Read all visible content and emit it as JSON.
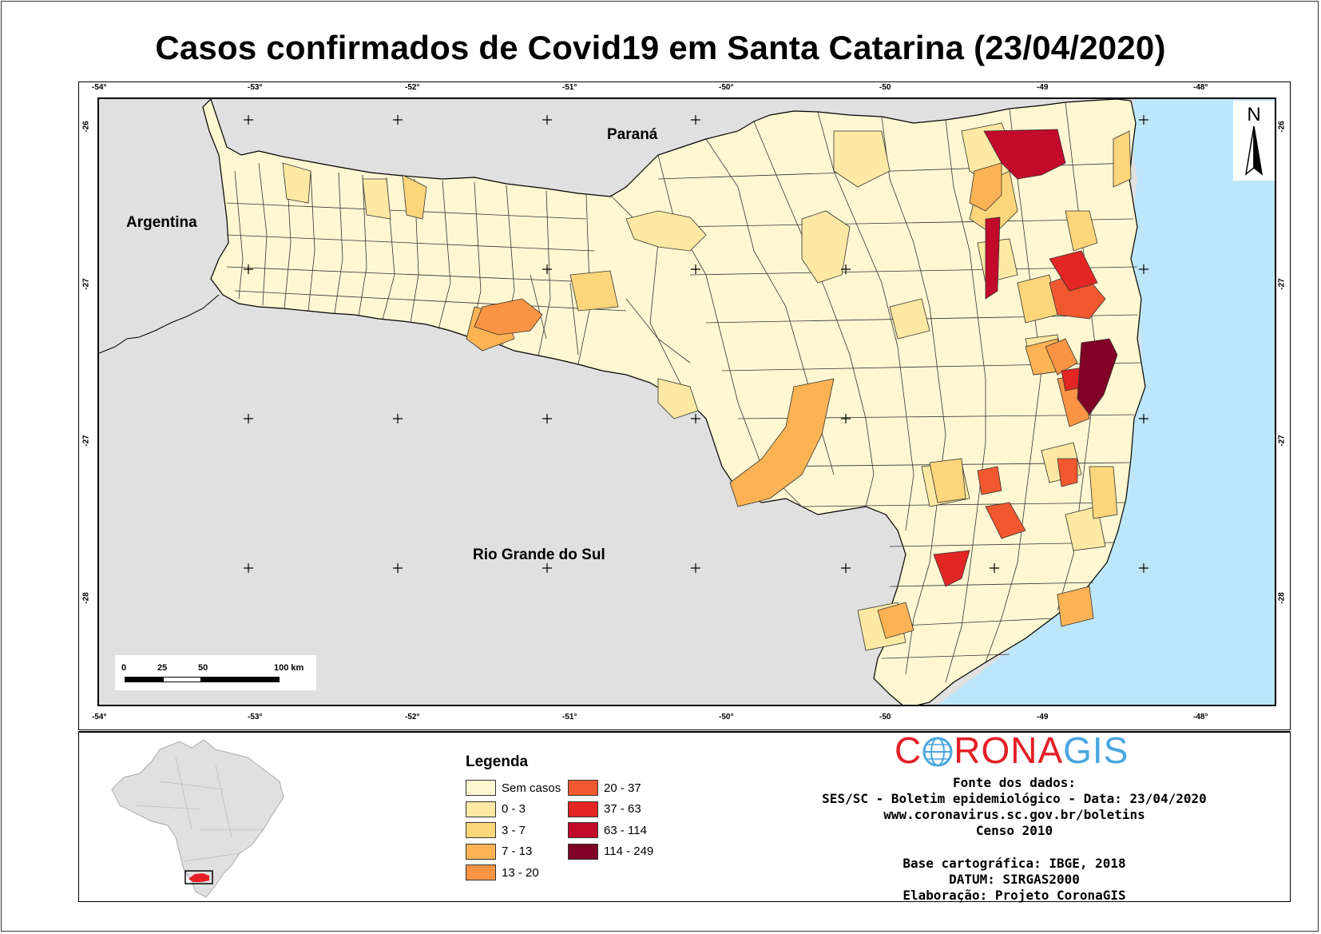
{
  "title": "Casos confirmados de Covid19 em Santa Catarina (23/04/2020)",
  "map": {
    "longitude_ticks": [
      "-54°",
      "-53°",
      "-52°",
      "-51°",
      "-50°",
      "-50",
      "-49",
      "-48°"
    ],
    "latitude_ticks": [
      "-26",
      "-27",
      "-27",
      "-28"
    ],
    "labels": {
      "parana": "Paraná",
      "argentina": "Argentina",
      "rs": "Rio Grande do Sul"
    },
    "north_label": "N",
    "scalebar": {
      "ticks": [
        "0",
        "25",
        "50",
        "100 km"
      ]
    },
    "colors": {
      "ocean": "#bde6fa",
      "neighbors": "#e0e0e0",
      "border": "#000000"
    }
  },
  "legend": {
    "title": "Legenda",
    "items": [
      {
        "label": "Sem casos",
        "color": "#fef7d2"
      },
      {
        "label": "0 - 3",
        "color": "#fde9a3"
      },
      {
        "label": "3 - 7",
        "color": "#fdd67c"
      },
      {
        "label": "7 - 13",
        "color": "#fbb354"
      },
      {
        "label": "13 - 20",
        "color": "#f89444"
      },
      {
        "label": "20 - 37",
        "color": "#f2582f"
      },
      {
        "label": "37 - 63",
        "color": "#e32624"
      },
      {
        "label": "63 - 114",
        "color": "#c20a2b"
      },
      {
        "label": "114 - 249",
        "color": "#800026"
      }
    ]
  },
  "logo": {
    "part1": "C",
    "part2": "RONA",
    "part3": "GIS"
  },
  "source": {
    "line1": "Fonte dos dados:",
    "line2": "SES/SC - Boletim epidemiológico - Data: 23/04/2020",
    "line3": "www.coronavirus.sc.gov.br/boletins",
    "line4": "Censo 2010",
    "line5": "Base cartográfica: IBGE, 2018",
    "line6": "DATUM: SIRGAS2000",
    "line7": "Elaboração: Projeto CoronaGIS"
  }
}
